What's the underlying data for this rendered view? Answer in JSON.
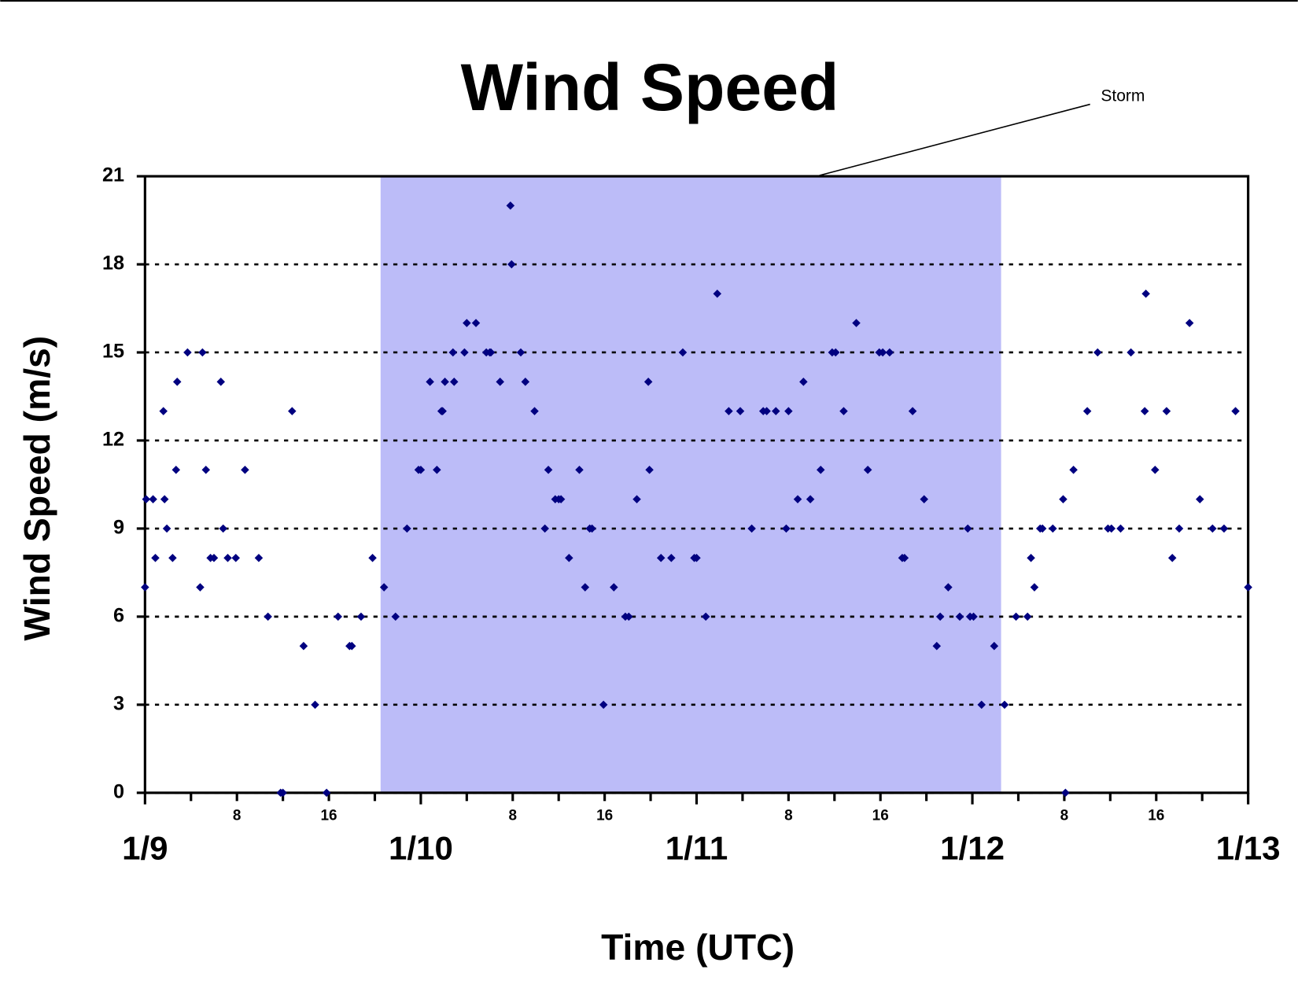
{
  "chart_data": {
    "type": "scatter",
    "title": "Wind Speed",
    "x_label": "Time (UTC)",
    "y_label": "Wind Speed (m/s)",
    "annotation": {
      "text": "Storm",
      "x": [
        20.5,
        74.5
      ],
      "color": "#bcbcf8"
    },
    "color": "#000080",
    "x": [
      0,
      0.1,
      0.7,
      0.9,
      1.6,
      1.7,
      1.9,
      2.4,
      2.7,
      2.8,
      3.7,
      4.8,
      5,
      5.3,
      5.7,
      6,
      6.6,
      6.8,
      7.2,
      7.9,
      8.7,
      9.9,
      10.7,
      11.8,
      12,
      12.8,
      13.8,
      14.8,
      15.8,
      16.8,
      17.8,
      18,
      18.8,
      19.8,
      20.8,
      21.8,
      22.8,
      23.8,
      24,
      24.8,
      25.4,
      25.8,
      25.9,
      26.1,
      26.8,
      26.9,
      27.8,
      28,
      28.8,
      29.7,
      30,
      30.1,
      30.9,
      31.8,
      31.9,
      32.7,
      33.1,
      33.9,
      34.8,
      35.1,
      35.7,
      36,
      36.2,
      36.9,
      37.8,
      38.3,
      38.7,
      38.9,
      39.9,
      40.8,
      41.8,
      42.1,
      42.8,
      43.8,
      43.9,
      44.9,
      45.8,
      46.8,
      47.8,
      48,
      48.8,
      49.8,
      50.8,
      51.8,
      52.8,
      53.8,
      54.1,
      54.9,
      55.8,
      56,
      56.8,
      57.3,
      57.9,
      58.8,
      59.8,
      60.1,
      60.8,
      61.9,
      62.9,
      63.9,
      64.2,
      64.8,
      65.9,
      66.1,
      66.8,
      67.8,
      68.9,
      69.2,
      69.9,
      70.9,
      71.6,
      71.8,
      72.1,
      72.8,
      73.9,
      74.8,
      75.8,
      76.8,
      77.1,
      77.4,
      77.9,
      78.1,
      79,
      79.9,
      80.1,
      80.8,
      82,
      82.9,
      83.8,
      84.1,
      84.9,
      85.8,
      87,
      87.1,
      87.9,
      88.9,
      89.4,
      90,
      90.9,
      91.8,
      92.9,
      93.9,
      94.9,
      96
    ],
    "values": [
      7,
      10,
      10,
      8,
      13,
      10,
      9,
      8,
      11,
      14,
      15,
      7,
      15,
      11,
      8,
      8,
      14,
      9,
      8,
      8,
      11,
      8,
      6,
      0,
      0,
      13,
      5,
      3,
      0,
      6,
      5,
      5,
      6,
      8,
      7,
      6,
      9,
      11,
      11,
      14,
      11,
      13,
      13,
      14,
      15,
      14,
      15,
      16,
      16,
      15,
      15,
      15,
      14,
      20,
      18,
      15,
      14,
      13,
      9,
      11,
      10,
      10,
      10,
      8,
      11,
      7,
      9,
      9,
      3,
      7,
      6,
      6,
      10,
      14,
      11,
      8,
      8,
      15,
      8,
      8,
      6,
      17,
      13,
      13,
      9,
      13,
      13,
      13,
      9,
      13,
      10,
      14,
      10,
      11,
      15,
      15,
      13,
      16,
      11,
      15,
      15,
      15,
      8,
      8,
      13,
      10,
      5,
      6,
      7,
      6,
      9,
      6,
      6,
      3,
      5,
      3,
      6,
      6,
      8,
      7,
      9,
      9,
      9,
      10,
      0,
      11,
      13,
      15,
      9,
      9,
      9,
      15,
      13,
      17,
      11,
      13,
      8,
      9,
      16,
      10,
      9,
      9,
      13,
      7
    ],
    "xlim": [
      0,
      96
    ],
    "xticks": [
      {
        "value": 0,
        "label": "1/9"
      },
      8,
      16,
      {
        "value": 24,
        "label": "1/10"
      },
      {
        "value": 32,
        "label": "8"
      },
      {
        "value": 40,
        "label": "16"
      },
      {
        "value": 48,
        "label": "1/11"
      },
      {
        "value": 56,
        "label": "8"
      },
      {
        "value": 64,
        "label": "16"
      },
      {
        "value": 72,
        "label": "1/12"
      },
      {
        "value": 80,
        "label": "8"
      },
      {
        "value": 88,
        "label": "16"
      },
      {
        "value": 96,
        "label": "1/13"
      }
    ],
    "xminor_ticks": [
      4,
      12,
      20,
      28,
      36,
      44,
      52,
      60,
      68,
      76,
      84,
      92
    ],
    "ylim": [
      0,
      21
    ],
    "yticks": [
      0,
      3,
      6,
      9,
      12,
      15,
      18,
      21
    ],
    "grid": true
  }
}
